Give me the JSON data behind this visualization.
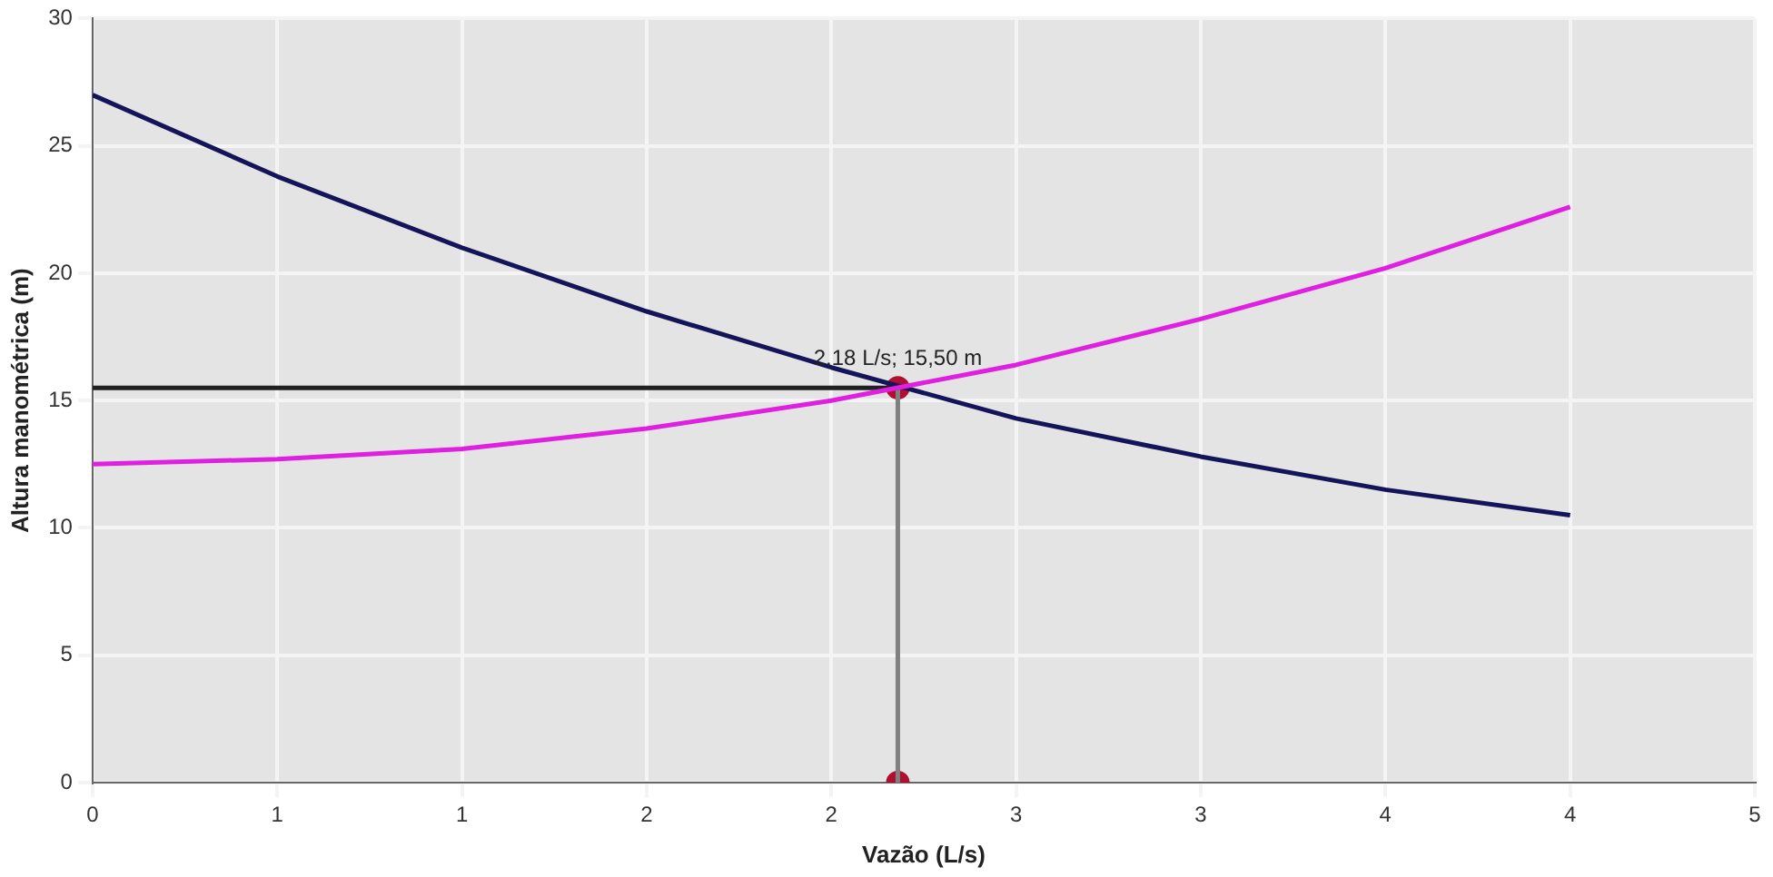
{
  "chart_data": {
    "type": "line",
    "xlabel": "Vazão (L/s)",
    "ylabel": "Altura manométrica (m)",
    "xlim": [
      0,
      4.5
    ],
    "xticks": [
      0,
      {
        "value": 0.5,
        "label": "1"
      },
      1,
      {
        "value": 1.5,
        "label": "2"
      },
      2,
      {
        "value": 2.5,
        "label": "3"
      },
      3,
      {
        "value": 3.5,
        "label": "4"
      },
      4,
      {
        "value": 4.5,
        "label": "5"
      }
    ],
    "ylim": [
      0,
      30
    ],
    "yticks": [
      0,
      5,
      10,
      15,
      20,
      25,
      30
    ],
    "grid": true,
    "marker": "none",
    "series": [
      {
        "color": "#e020e0",
        "x": [
          0,
          0.5,
          1,
          1.5,
          2,
          2.5,
          3,
          3.5,
          4
        ],
        "values": [
          12.5,
          12.7,
          13.1,
          13.9,
          15.0,
          16.4,
          18.2,
          20.2,
          22.6
        ]
      },
      {
        "color": "#14145a",
        "x": [
          0,
          0.5,
          1,
          1.5,
          2,
          2.5,
          3,
          3.5,
          4
        ],
        "values": [
          27,
          23.8,
          21.0,
          18.5,
          16.3,
          14.3,
          12.8,
          11.5,
          10.5
        ]
      },
      {
        "type": "line",
        "color": "#202020",
        "x": [
          0,
          2.18
        ],
        "values": [
          15.5,
          15.5
        ]
      },
      {
        "type": "line",
        "color": "#808080",
        "x": [
          2.18,
          2.18
        ],
        "values": [
          15.5,
          0
        ]
      },
      {
        "type": "scatter",
        "color": "#b01030",
        "marker": "circle",
        "x": [
          2.18,
          2.18
        ],
        "values": [
          15.5,
          0
        ]
      }
    ],
    "annotations": [
      {
        "text": "2,18 L/s; 15,50 m",
        "x": 2.18,
        "y": 15.5
      }
    ]
  }
}
